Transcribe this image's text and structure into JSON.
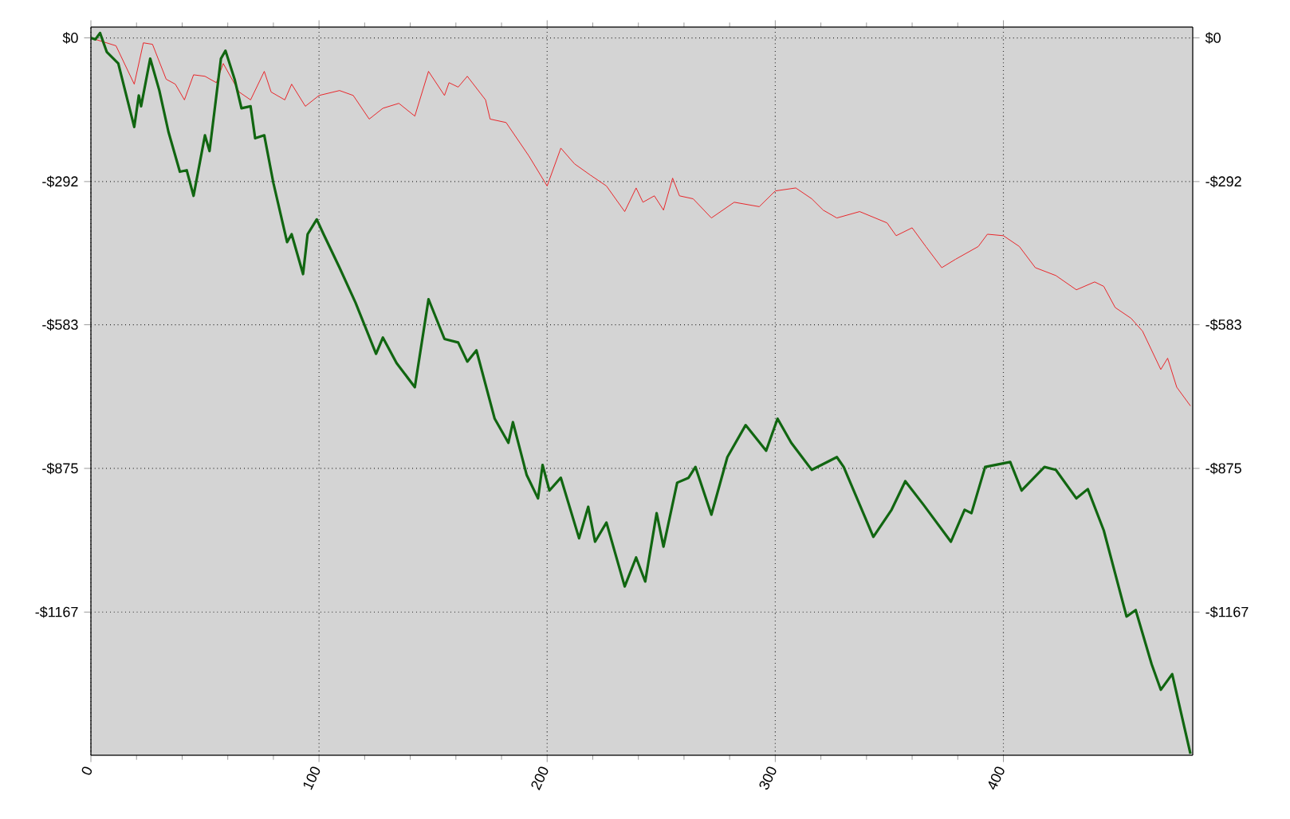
{
  "chart_data": {
    "type": "line",
    "xlim": [
      0,
      483
    ],
    "ylim": [
      -1458,
      22
    ],
    "y2lim": [
      -1458,
      22
    ],
    "xticks": [
      0,
      100,
      200,
      300,
      400
    ],
    "yticks": [
      {
        "value": 0,
        "label": "$0"
      },
      {
        "value": -292,
        "label": "-$292"
      },
      {
        "value": -583,
        "label": "-$583"
      },
      {
        "value": -875,
        "label": "-$875"
      },
      {
        "value": -1167,
        "label": "-$1167"
      }
    ],
    "y2ticks": [
      {
        "value": 0,
        "label": "$0"
      },
      {
        "value": -292,
        "label": "-$292"
      },
      {
        "value": -583,
        "label": "-$583"
      },
      {
        "value": -875,
        "label": "-$875"
      },
      {
        "value": -1167,
        "label": "-$1167"
      }
    ],
    "grid": true,
    "series": [
      {
        "color": "#e8262a",
        "x": [
          0,
          2,
          11,
          19,
          23,
          27,
          33,
          37,
          41,
          45,
          50,
          55,
          58,
          65,
          70,
          76,
          79,
          85,
          88,
          94,
          100,
          109,
          115,
          122,
          128,
          135,
          142,
          148,
          155,
          157,
          161,
          165,
          173,
          175,
          182,
          192,
          200,
          206,
          212,
          219,
          226,
          234,
          239,
          242,
          247,
          251,
          255,
          258,
          264,
          272,
          282,
          293,
          300,
          309,
          316,
          321,
          327,
          337,
          349,
          353,
          360,
          366,
          373,
          379,
          389,
          393,
          400,
          407,
          414,
          423,
          432,
          440,
          444,
          449,
          456,
          461,
          469,
          472,
          476,
          482
        ],
        "values": [
          0,
          -3,
          -16,
          -94,
          -10,
          -13,
          -84,
          -94,
          -126,
          -75,
          -78,
          -91,
          -52,
          -110,
          -126,
          -68,
          -110,
          -126,
          -94,
          -139,
          -117,
          -107,
          -117,
          -165,
          -143,
          -133,
          -159,
          -68,
          -117,
          -91,
          -100,
          -78,
          -126,
          -165,
          -172,
          -240,
          -301,
          -224,
          -256,
          -279,
          -301,
          -353,
          -305,
          -334,
          -321,
          -350,
          -285,
          -321,
          -327,
          -366,
          -334,
          -343,
          -311,
          -305,
          -327,
          -350,
          -366,
          -353,
          -376,
          -402,
          -386,
          -424,
          -467,
          -450,
          -424,
          -399,
          -402,
          -424,
          -467,
          -483,
          -512,
          -496,
          -505,
          -548,
          -570,
          -596,
          -674,
          -651,
          -710,
          -748
        ]
      },
      {
        "color": "#116611",
        "x": [
          0,
          2,
          4,
          7,
          12,
          19,
          21,
          22,
          26,
          30,
          34,
          39,
          42,
          45,
          50,
          52,
          57,
          59,
          63,
          66,
          70,
          72,
          76,
          80,
          86,
          88,
          93,
          95,
          99,
          102,
          109,
          116,
          125,
          128,
          134,
          142,
          148,
          155,
          161,
          165,
          169,
          177,
          183,
          185,
          191,
          196,
          198,
          201,
          206,
          214,
          218,
          221,
          226,
          234,
          239,
          243,
          248,
          251,
          257,
          262,
          265,
          272,
          279,
          287,
          296,
          301,
          307,
          316,
          327,
          330,
          343,
          351,
          357,
          365,
          377,
          383,
          386,
          392,
          403,
          408,
          418,
          423,
          432,
          437,
          444,
          454,
          458,
          465,
          469,
          474,
          482
        ],
        "values": [
          0,
          -3,
          10,
          -29,
          -52,
          -181,
          -117,
          -139,
          -42,
          -107,
          -191,
          -272,
          -269,
          -321,
          -198,
          -230,
          -42,
          -26,
          -84,
          -143,
          -139,
          -204,
          -198,
          -295,
          -415,
          -399,
          -480,
          -399,
          -369,
          -399,
          -467,
          -538,
          -642,
          -609,
          -661,
          -710,
          -531,
          -612,
          -619,
          -658,
          -635,
          -774,
          -823,
          -781,
          -888,
          -936,
          -868,
          -920,
          -894,
          -1017,
          -953,
          -1024,
          -985,
          -1115,
          -1056,
          -1105,
          -966,
          -1034,
          -904,
          -894,
          -872,
          -969,
          -852,
          -787,
          -839,
          -774,
          -823,
          -878,
          -852,
          -872,
          -1014,
          -959,
          -901,
          -949,
          -1024,
          -959,
          -966,
          -872,
          -862,
          -920,
          -872,
          -878,
          -936,
          -917,
          -1001,
          -1176,
          -1163,
          -1273,
          -1325,
          -1293,
          -1455
        ]
      }
    ]
  }
}
